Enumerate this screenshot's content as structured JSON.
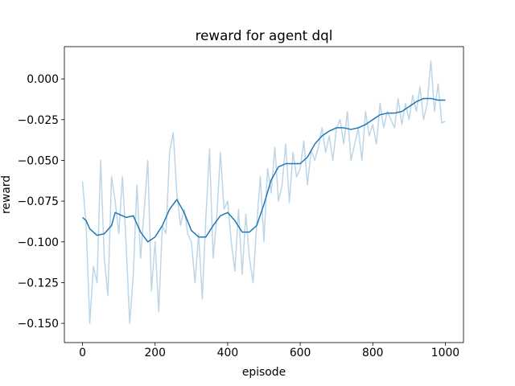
{
  "chart_data": {
    "type": "line",
    "title": "reward for agent dql",
    "xlabel": "episode",
    "ylabel": "reward",
    "xlim": [
      -50,
      1050
    ],
    "ylim": [
      -0.1618,
      0.0198
    ],
    "xticks": [
      0,
      200,
      400,
      600,
      800,
      1000
    ],
    "yticks": [
      {
        "value": -0.15,
        "label": "−0.150"
      },
      {
        "value": -0.125,
        "label": "−0.125"
      },
      {
        "value": -0.1,
        "label": "−0.100"
      },
      {
        "value": -0.075,
        "label": "−0.075"
      },
      {
        "value": -0.05,
        "label": "−0.050"
      },
      {
        "value": -0.025,
        "label": "−0.025"
      },
      {
        "value": 0,
        "label": "0.000"
      }
    ],
    "grid": false,
    "series": [
      {
        "color": "#bcd6e8",
        "x": [
          0,
          10,
          20,
          30,
          40,
          50,
          60,
          70,
          80,
          90,
          100,
          110,
          120,
          130,
          140,
          150,
          160,
          170,
          180,
          190,
          200,
          210,
          220,
          230,
          240,
          250,
          260,
          270,
          280,
          290,
          300,
          310,
          320,
          330,
          340,
          350,
          360,
          370,
          380,
          390,
          400,
          410,
          420,
          430,
          440,
          450,
          460,
          470,
          480,
          490,
          500,
          510,
          520,
          530,
          540,
          550,
          560,
          570,
          580,
          590,
          600,
          610,
          620,
          630,
          640,
          650,
          660,
          670,
          680,
          690,
          700,
          710,
          720,
          730,
          740,
          750,
          760,
          770,
          780,
          790,
          800,
          810,
          820,
          830,
          840,
          850,
          860,
          870,
          880,
          890,
          900,
          910,
          920,
          930,
          940,
          950,
          960,
          970,
          980,
          990,
          1000
        ],
        "values": [
          -0.063,
          -0.09,
          -0.15,
          -0.115,
          -0.125,
          -0.05,
          -0.11,
          -0.133,
          -0.06,
          -0.075,
          -0.095,
          -0.06,
          -0.1,
          -0.15,
          -0.12,
          -0.065,
          -0.11,
          -0.08,
          -0.05,
          -0.13,
          -0.1,
          -0.143,
          -0.09,
          -0.095,
          -0.045,
          -0.033,
          -0.07,
          -0.09,
          -0.08,
          -0.095,
          -0.1,
          -0.125,
          -0.095,
          -0.135,
          -0.085,
          -0.043,
          -0.11,
          -0.085,
          -0.045,
          -0.08,
          -0.075,
          -0.1,
          -0.118,
          -0.08,
          -0.12,
          -0.083,
          -0.11,
          -0.125,
          -0.09,
          -0.06,
          -0.1,
          -0.055,
          -0.07,
          -0.042,
          -0.075,
          -0.065,
          -0.04,
          -0.076,
          -0.045,
          -0.06,
          -0.055,
          -0.038,
          -0.065,
          -0.044,
          -0.05,
          -0.042,
          -0.03,
          -0.045,
          -0.035,
          -0.05,
          -0.03,
          -0.025,
          -0.04,
          -0.02,
          -0.05,
          -0.04,
          -0.03,
          -0.05,
          -0.02,
          -0.035,
          -0.028,
          -0.04,
          -0.015,
          -0.03,
          -0.02,
          -0.025,
          -0.03,
          -0.012,
          -0.028,
          -0.015,
          -0.025,
          -0.01,
          -0.02,
          -0.005,
          -0.025,
          -0.015,
          0.011,
          -0.02,
          -0.003,
          -0.027,
          -0.026
        ]
      },
      {
        "color": "#1f77b4",
        "x": [
          0,
          10,
          20,
          40,
          60,
          80,
          90,
          100,
          120,
          140,
          160,
          180,
          200,
          220,
          240,
          260,
          280,
          300,
          320,
          340,
          360,
          380,
          400,
          420,
          440,
          460,
          480,
          500,
          520,
          540,
          560,
          580,
          600,
          620,
          640,
          660,
          680,
          700,
          720,
          740,
          760,
          780,
          800,
          820,
          840,
          860,
          880,
          900,
          920,
          940,
          960,
          980,
          1000
        ],
        "values": [
          -0.085,
          -0.087,
          -0.092,
          -0.096,
          -0.095,
          -0.09,
          -0.082,
          -0.083,
          -0.085,
          -0.084,
          -0.094,
          -0.1,
          -0.097,
          -0.09,
          -0.08,
          -0.074,
          -0.082,
          -0.093,
          -0.097,
          -0.097,
          -0.09,
          -0.084,
          -0.082,
          -0.087,
          -0.094,
          -0.094,
          -0.09,
          -0.077,
          -0.062,
          -0.054,
          -0.052,
          -0.052,
          -0.052,
          -0.048,
          -0.04,
          -0.035,
          -0.032,
          -0.03,
          -0.03,
          -0.031,
          -0.03,
          -0.028,
          -0.025,
          -0.022,
          -0.021,
          -0.021,
          -0.02,
          -0.017,
          -0.014,
          -0.012,
          -0.012,
          -0.013,
          -0.013
        ]
      }
    ]
  }
}
